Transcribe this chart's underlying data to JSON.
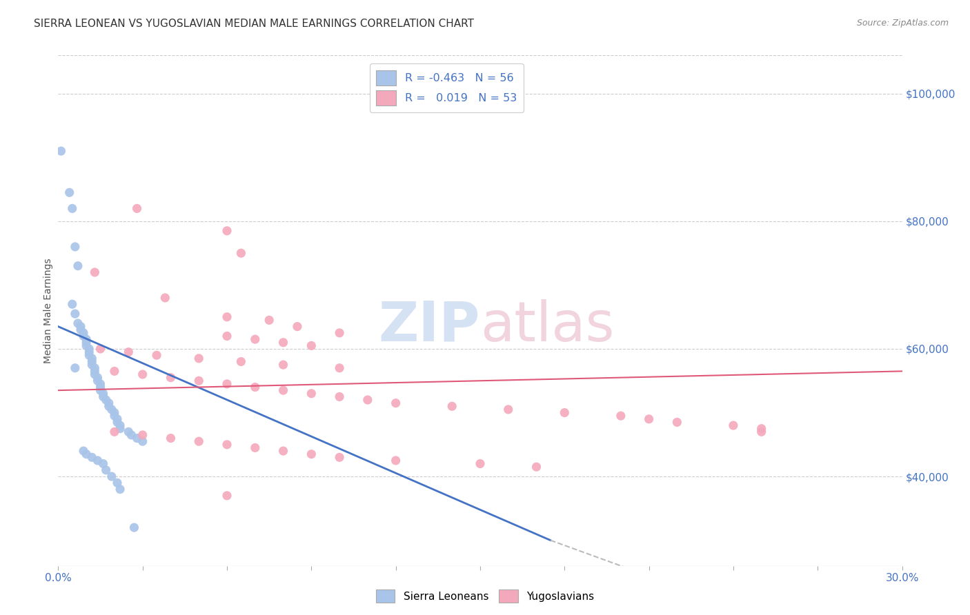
{
  "title": "SIERRA LEONEAN VS YUGOSLAVIAN MEDIAN MALE EARNINGS CORRELATION CHART",
  "source": "Source: ZipAtlas.com",
  "ylabel": "Median Male Earnings",
  "yticks": [
    40000,
    60000,
    80000,
    100000
  ],
  "ytick_labels": [
    "$40,000",
    "$60,000",
    "$80,000",
    "$100,000"
  ],
  "xmin": 0.0,
  "xmax": 0.3,
  "ymin": 26000,
  "ymax": 106000,
  "sl_color": "#a8c4e8",
  "yug_color": "#f4a8bc",
  "sl_line_color": "#4472c4",
  "yug_line_color": "#e05878",
  "axis_color": "#4472c4",
  "title_color": "#333333",
  "grid_color": "#cccccc",
  "watermark_color_zip": "#b8d0ee",
  "watermark_color_atlas": "#e8b8c8",
  "sl_scatter": [
    [
      0.001,
      91000
    ],
    [
      0.004,
      84500
    ],
    [
      0.005,
      82000
    ],
    [
      0.006,
      76000
    ],
    [
      0.007,
      73000
    ],
    [
      0.005,
      67000
    ],
    [
      0.006,
      65500
    ],
    [
      0.007,
      64000
    ],
    [
      0.008,
      63500
    ],
    [
      0.008,
      63000
    ],
    [
      0.009,
      62500
    ],
    [
      0.009,
      62000
    ],
    [
      0.01,
      61500
    ],
    [
      0.01,
      61000
    ],
    [
      0.01,
      60500
    ],
    [
      0.011,
      60000
    ],
    [
      0.011,
      59500
    ],
    [
      0.011,
      59000
    ],
    [
      0.012,
      58500
    ],
    [
      0.012,
      58000
    ],
    [
      0.012,
      57500
    ],
    [
      0.013,
      57000
    ],
    [
      0.013,
      56500
    ],
    [
      0.013,
      56000
    ],
    [
      0.014,
      55500
    ],
    [
      0.014,
      55000
    ],
    [
      0.015,
      54500
    ],
    [
      0.015,
      54000
    ],
    [
      0.015,
      53500
    ],
    [
      0.016,
      53000
    ],
    [
      0.016,
      52500
    ],
    [
      0.017,
      52000
    ],
    [
      0.018,
      51500
    ],
    [
      0.018,
      51000
    ],
    [
      0.019,
      50500
    ],
    [
      0.02,
      50000
    ],
    [
      0.02,
      49500
    ],
    [
      0.021,
      49000
    ],
    [
      0.021,
      48500
    ],
    [
      0.022,
      48000
    ],
    [
      0.022,
      47500
    ],
    [
      0.025,
      47000
    ],
    [
      0.026,
      46500
    ],
    [
      0.028,
      46000
    ],
    [
      0.03,
      45500
    ],
    [
      0.006,
      57000
    ],
    [
      0.009,
      44000
    ],
    [
      0.01,
      43500
    ],
    [
      0.012,
      43000
    ],
    [
      0.014,
      42500
    ],
    [
      0.016,
      42000
    ],
    [
      0.017,
      41000
    ],
    [
      0.019,
      40000
    ],
    [
      0.021,
      39000
    ],
    [
      0.022,
      38000
    ],
    [
      0.027,
      32000
    ]
  ],
  "yug_scatter": [
    [
      0.028,
      82000
    ],
    [
      0.06,
      78500
    ],
    [
      0.065,
      75000
    ],
    [
      0.013,
      72000
    ],
    [
      0.038,
      68000
    ],
    [
      0.06,
      65000
    ],
    [
      0.075,
      64500
    ],
    [
      0.085,
      63500
    ],
    [
      0.1,
      62500
    ],
    [
      0.06,
      62000
    ],
    [
      0.07,
      61500
    ],
    [
      0.08,
      61000
    ],
    [
      0.09,
      60500
    ],
    [
      0.015,
      60000
    ],
    [
      0.025,
      59500
    ],
    [
      0.035,
      59000
    ],
    [
      0.05,
      58500
    ],
    [
      0.065,
      58000
    ],
    [
      0.08,
      57500
    ],
    [
      0.1,
      57000
    ],
    [
      0.02,
      56500
    ],
    [
      0.03,
      56000
    ],
    [
      0.04,
      55500
    ],
    [
      0.05,
      55000
    ],
    [
      0.06,
      54500
    ],
    [
      0.07,
      54000
    ],
    [
      0.08,
      53500
    ],
    [
      0.09,
      53000
    ],
    [
      0.1,
      52500
    ],
    [
      0.11,
      52000
    ],
    [
      0.12,
      51500
    ],
    [
      0.14,
      51000
    ],
    [
      0.16,
      50500
    ],
    [
      0.18,
      50000
    ],
    [
      0.2,
      49500
    ],
    [
      0.21,
      49000
    ],
    [
      0.22,
      48500
    ],
    [
      0.24,
      48000
    ],
    [
      0.25,
      47500
    ],
    [
      0.02,
      47000
    ],
    [
      0.03,
      46500
    ],
    [
      0.04,
      46000
    ],
    [
      0.05,
      45500
    ],
    [
      0.06,
      45000
    ],
    [
      0.07,
      44500
    ],
    [
      0.08,
      44000
    ],
    [
      0.09,
      43500
    ],
    [
      0.1,
      43000
    ],
    [
      0.12,
      42500
    ],
    [
      0.15,
      42000
    ],
    [
      0.17,
      41500
    ],
    [
      0.06,
      37000
    ],
    [
      0.25,
      47000
    ]
  ],
  "sl_line": [
    [
      0.0,
      63500
    ],
    [
      0.175,
      30000
    ]
  ],
  "sl_line_dashed": [
    [
      0.175,
      30000
    ],
    [
      0.3,
      10000
    ]
  ],
  "yug_line": [
    [
      0.0,
      53500
    ],
    [
      0.3,
      56500
    ]
  ],
  "legend_sl": "R = -0.463   N = 56",
  "legend_yug": "R =   0.019   N = 53",
  "bottom_legend_sl": "Sierra Leoneans",
  "bottom_legend_yug": "Yugoslavians"
}
